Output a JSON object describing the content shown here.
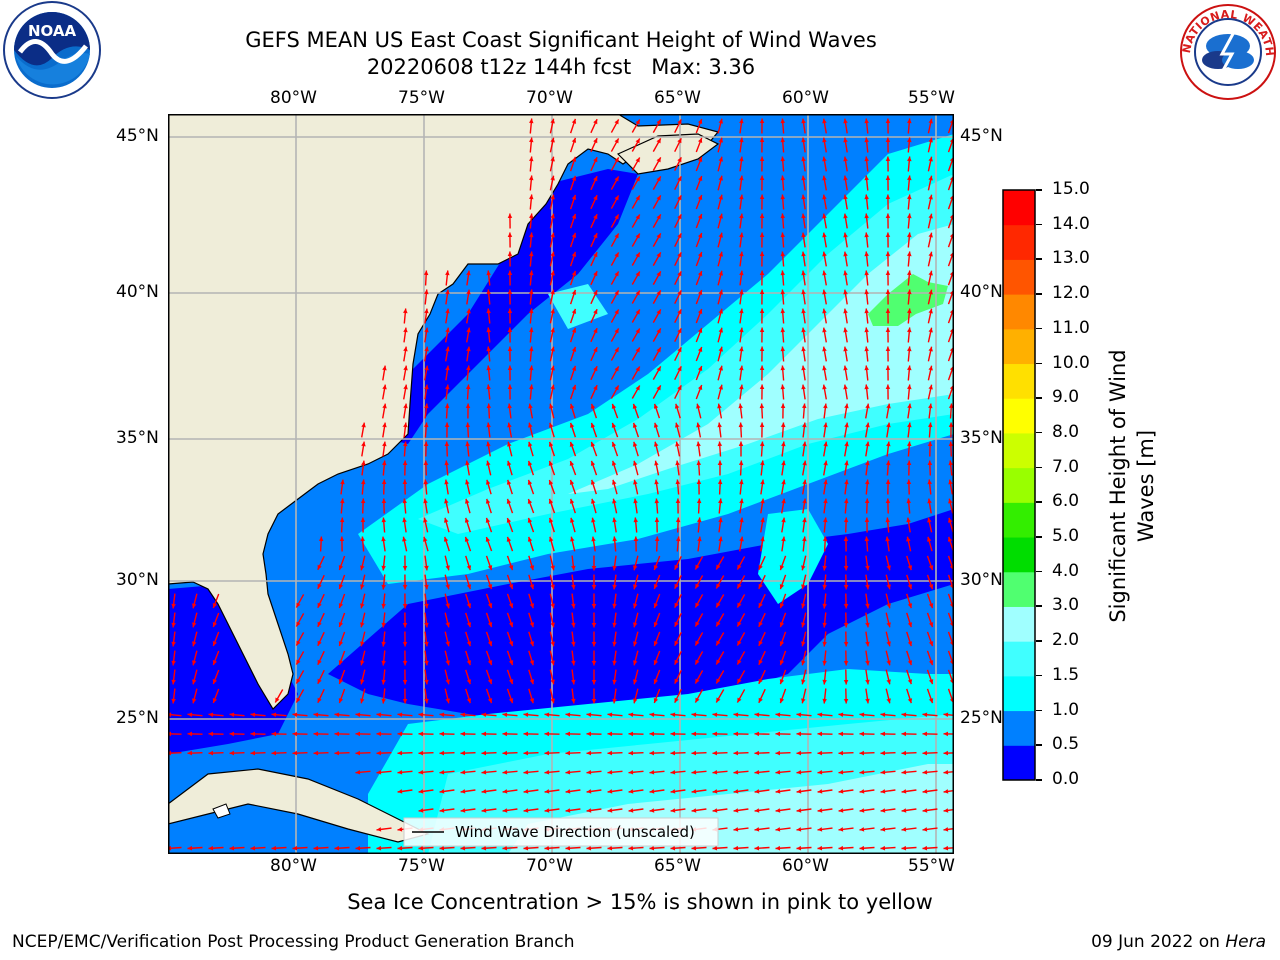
{
  "header": {
    "title_line1": "GEFS MEAN US East Coast Significant Height of Wind Waves",
    "title_line2": "20220608 t12z 144h fcst   Max: 3.36"
  },
  "logos": {
    "noaa_text": "NOAA",
    "nws_text": "NATIONAL WEATHER SERVICE"
  },
  "map": {
    "lon_labels": [
      "80°W",
      "75°W",
      "70°W",
      "65°W",
      "60°W",
      "55°W"
    ],
    "lat_labels": [
      "45°N",
      "40°N",
      "35°N",
      "30°N",
      "25°N"
    ],
    "legend_text": "Wind Wave Direction (unscaled)",
    "colors": {
      "land": "#efedd9",
      "grid": "#b4b4b4",
      "arrow": "#ff0000"
    }
  },
  "colorbar": {
    "title_line1": "Significant Height of Wind",
    "title_line2": "Waves [m]",
    "ticks": [
      "0.0",
      "0.5",
      "1.0",
      "1.5",
      "2.0",
      "3.0",
      "4.0",
      "5.0",
      "6.0",
      "7.0",
      "8.0",
      "9.0",
      "10.0",
      "11.0",
      "12.0",
      "13.0",
      "14.0",
      "15.0"
    ],
    "colors": [
      "#0000ff",
      "#0080ff",
      "#00ffff",
      "#40ffff",
      "#a0ffff",
      "#50ff70",
      "#00dd00",
      "#33ee00",
      "#99ff00",
      "#ccff00",
      "#ffff00",
      "#ffe000",
      "#ffb000",
      "#ff8800",
      "#ff5500",
      "#ff2800",
      "#ff0000"
    ]
  },
  "caption": "Sea Ice Concentration > 15% is shown in pink to yellow",
  "footer": {
    "left": "NCEP/EMC/Verification Post Processing Product Generation Branch",
    "right_date": "09 Jun 2022 on ",
    "right_machine": "Hera"
  }
}
